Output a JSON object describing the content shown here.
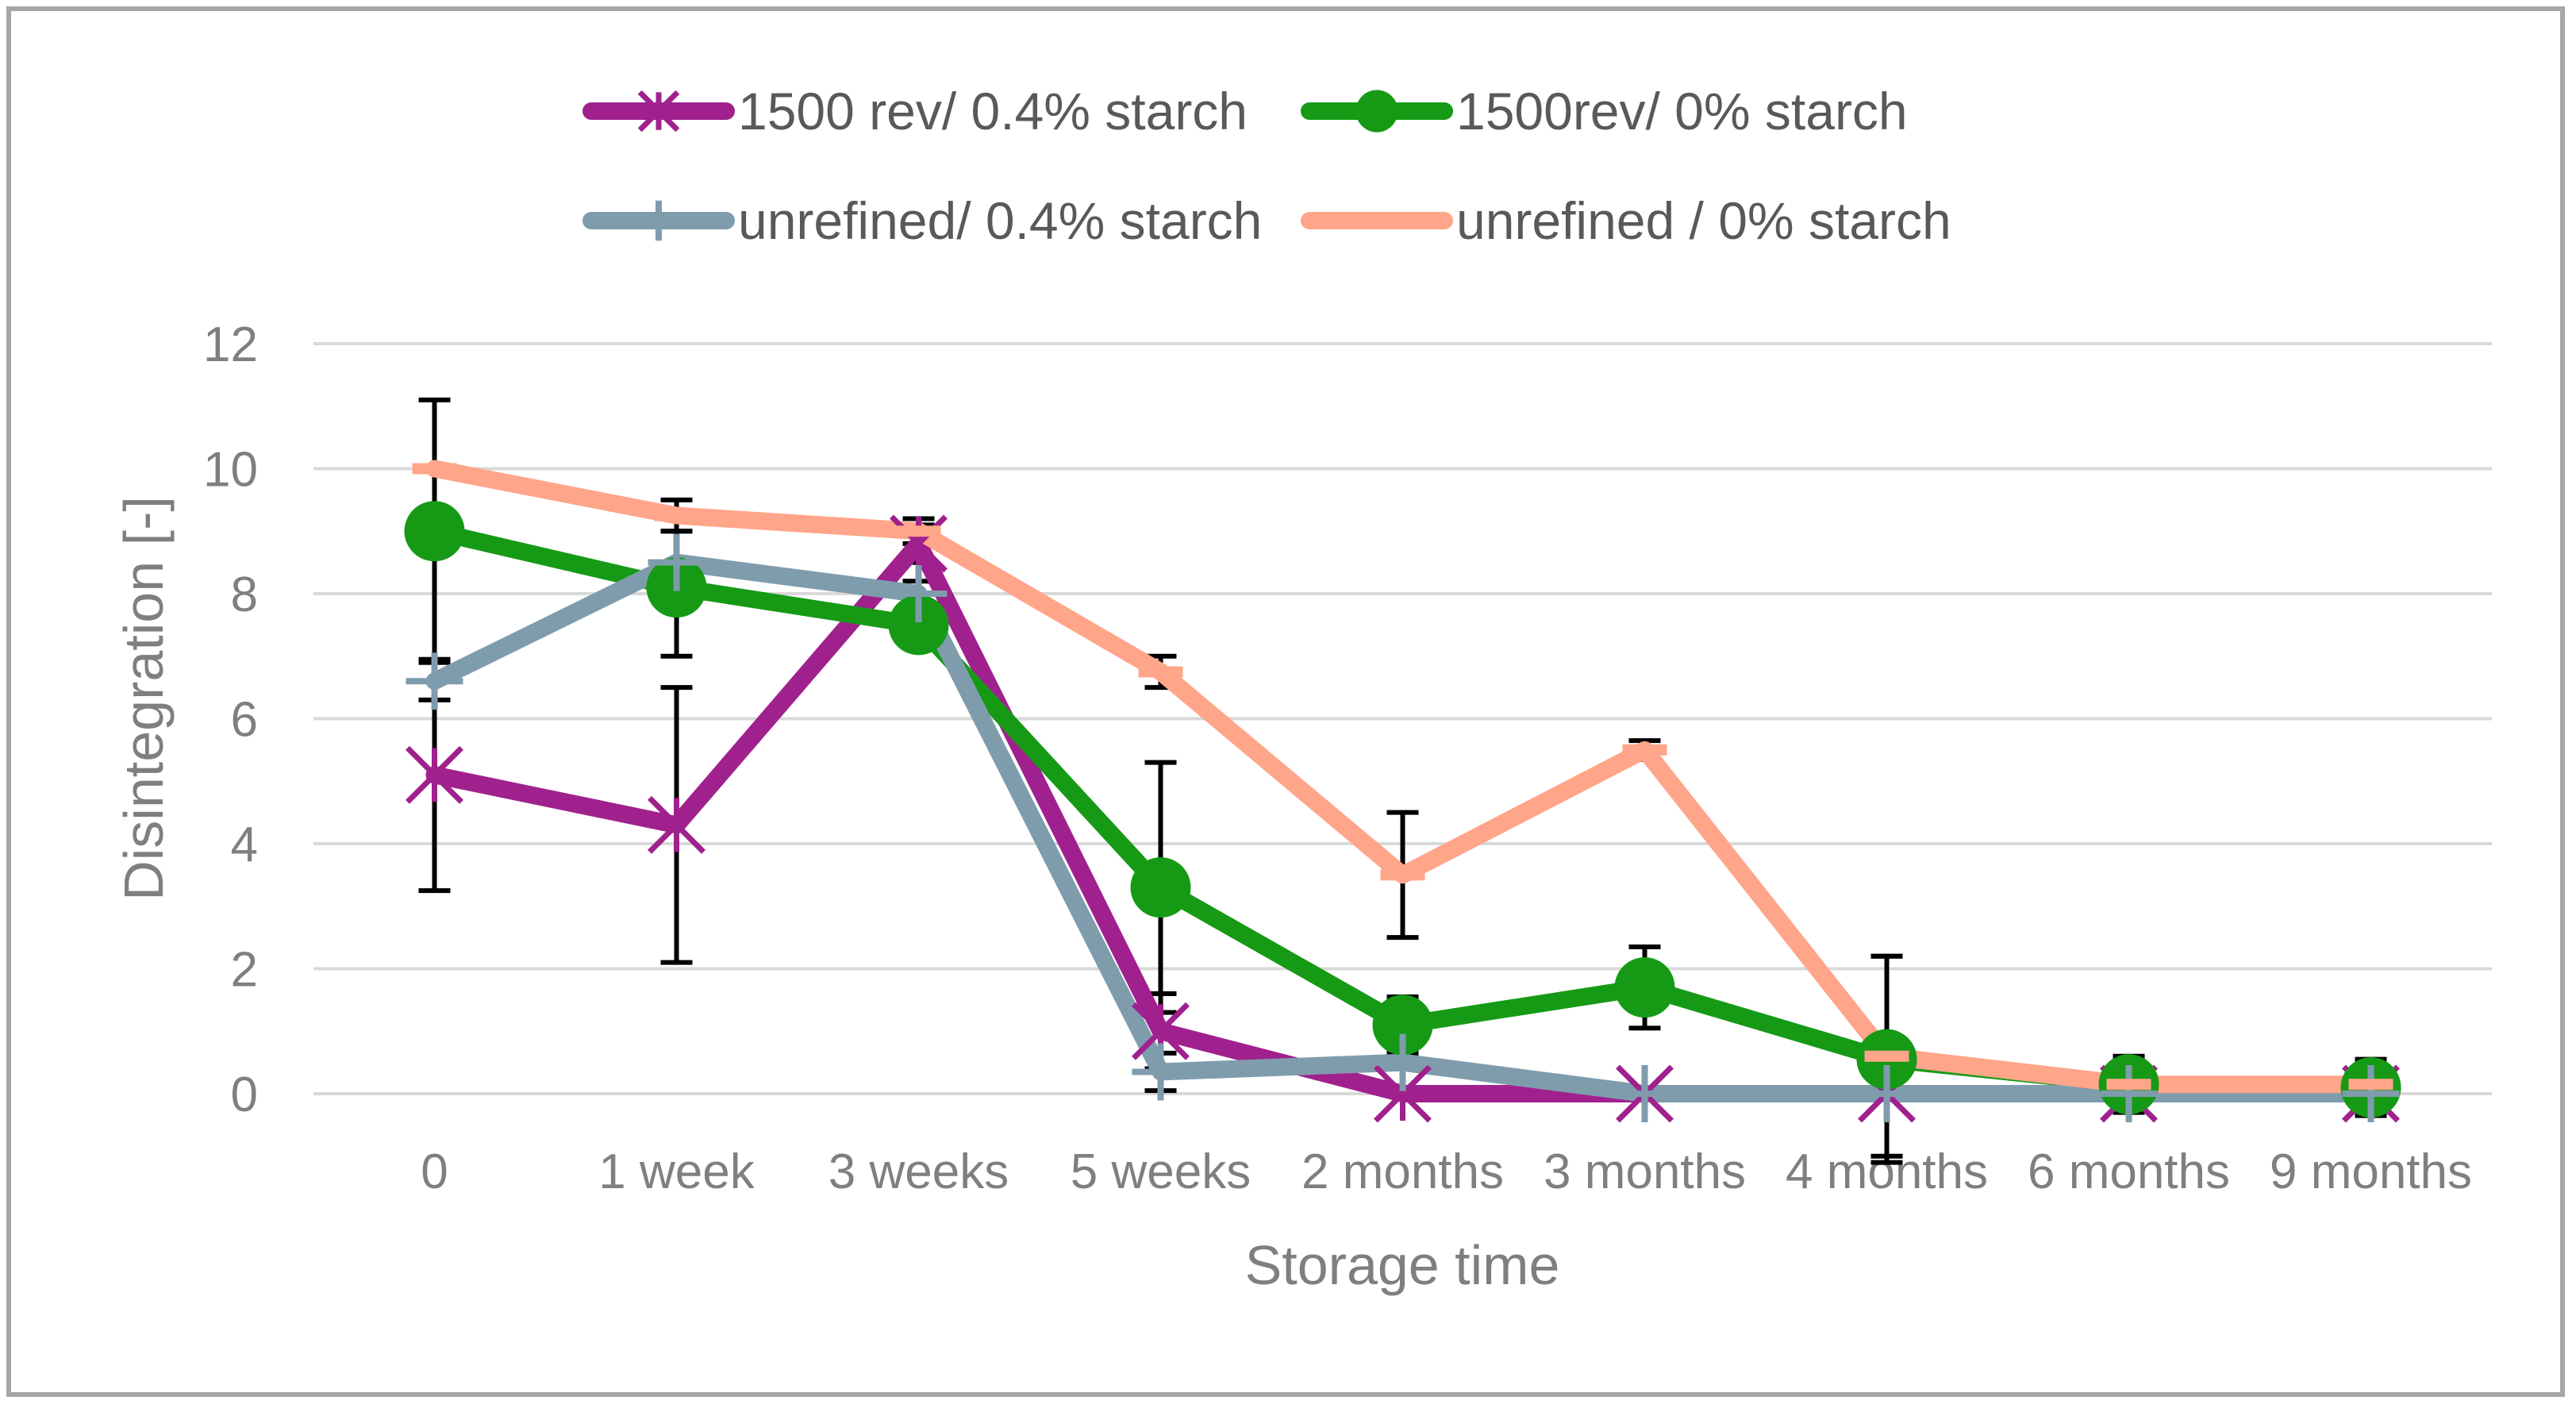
{
  "chart_data": {
    "type": "line",
    "title": "",
    "xlabel": "Storage time",
    "ylabel": "Disintegration [-]",
    "ylim": [
      0,
      12
    ],
    "yticks": [
      0,
      2,
      4,
      6,
      8,
      10,
      12
    ],
    "grid": true,
    "legend_position": "top",
    "categories": [
      "0",
      "1 week",
      "3 weeks",
      "5 weeks",
      "2 months",
      "3 months",
      "4 months",
      "6 months",
      "9 months"
    ],
    "series": [
      {
        "name": "1500 rev/ 0.4% starch",
        "color": "#a0218e",
        "marker": "star",
        "values": [
          5.1,
          4.3,
          8.8,
          1.0,
          0,
          0,
          0,
          0,
          0
        ],
        "error": [
          1.85,
          2.2,
          0.3,
          0.6,
          0,
          0,
          0,
          0,
          0
        ]
      },
      {
        "name": "1500rev/ 0% starch",
        "color": "#169a16",
        "marker": "circle",
        "values": [
          9.0,
          8.1,
          7.5,
          3.3,
          1.1,
          1.7,
          0.55,
          0.15,
          0.1
        ],
        "error": [
          2.1,
          1.1,
          0.2,
          2.0,
          0.45,
          0.65,
          1.65,
          0.45,
          0.45
        ]
      },
      {
        "name": "unrefined/ 0.4% starch",
        "color": "#7f9cad",
        "marker": "plus",
        "values": [
          6.6,
          8.5,
          8.0,
          0.35,
          0.5,
          0,
          0,
          0,
          0
        ],
        "error": [
          0.3,
          0.5,
          0.2,
          0.3,
          0,
          0,
          0,
          0,
          0
        ]
      },
      {
        "name": "unrefined / 0% starch",
        "color": "#ffa58a",
        "marker": "dash",
        "values": [
          10.0,
          9.25,
          9.0,
          6.75,
          3.5,
          5.5,
          0.6,
          0.15,
          0.15
        ],
        "error": [
          0,
          0.25,
          0.2,
          0.25,
          1.0,
          0.15,
          1.6,
          0.4,
          0.4
        ]
      }
    ]
  }
}
